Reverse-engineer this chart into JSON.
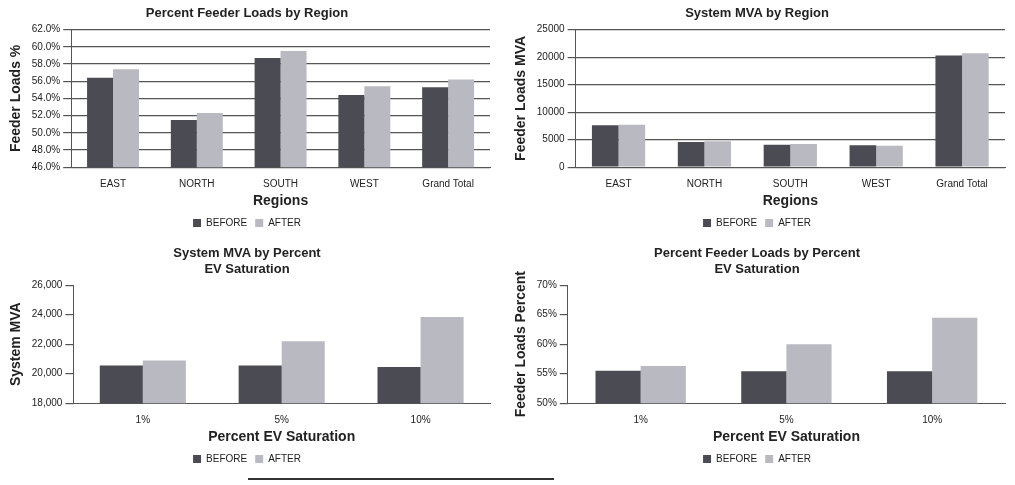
{
  "chart_data": [
    {
      "type": "bar",
      "title": "Percent Feeder Loads by Region",
      "xlabel": "Regions",
      "ylabel": "Feeder Loads %",
      "categories": [
        "EAST",
        "NORTH",
        "SOUTH",
        "WEST",
        "Grand Total"
      ],
      "series": [
        {
          "name": "BEFORE",
          "color": "#4b4b53",
          "values": [
            56.4,
            51.5,
            58.7,
            54.4,
            55.3
          ]
        },
        {
          "name": "AFTER",
          "color": "#b9b9c1",
          "values": [
            57.4,
            52.3,
            59.5,
            55.4,
            56.2
          ]
        }
      ],
      "ylim": [
        46,
        62
      ],
      "yticks": [
        {
          "value": 46,
          "label": "46.0%"
        },
        {
          "value": 48,
          "label": "48.0%"
        },
        {
          "value": 50,
          "label": "50.0%"
        },
        {
          "value": 52,
          "label": "52.0%"
        },
        {
          "value": 54,
          "label": "54.0%"
        },
        {
          "value": 56,
          "label": "56.0%"
        },
        {
          "value": 58,
          "label": "58.0%"
        },
        {
          "value": 60,
          "label": "60.0%"
        },
        {
          "value": 62,
          "label": "62.0%"
        }
      ],
      "grid": "y",
      "legend": "bottom"
    },
    {
      "type": "bar",
      "title": "System MVA by Region",
      "xlabel": "Regions",
      "ylabel": "Feeder Loads MVA",
      "categories": [
        "EAST",
        "NORTH",
        "SOUTH",
        "WEST",
        "Grand Total"
      ],
      "series": [
        {
          "name": "BEFORE",
          "color": "#4b4b53",
          "values": [
            7600,
            4600,
            4100,
            4000,
            20300
          ]
        },
        {
          "name": "AFTER",
          "color": "#b9b9c1",
          "values": [
            7700,
            4700,
            4200,
            3900,
            20700
          ]
        }
      ],
      "ylim": [
        0,
        25000
      ],
      "yticks": [
        0,
        5000,
        10000,
        15000,
        20000,
        25000
      ],
      "grid": "y",
      "legend": "bottom"
    },
    {
      "type": "bar",
      "title": "System MVA by Percent EV Saturation",
      "xlabel": "Percent EV Saturation",
      "ylabel": "System MVA",
      "categories": [
        "1%",
        "5%",
        "10%"
      ],
      "series": [
        {
          "name": "BEFORE",
          "color": "#4b4b53",
          "values": [
            20550,
            20550,
            20450
          ]
        },
        {
          "name": "AFTER",
          "color": "#b9b9c1",
          "values": [
            20900,
            22200,
            23850
          ]
        }
      ],
      "ylim": [
        18000,
        26000
      ],
      "yticks": [
        {
          "value": 18000,
          "label": "18,000"
        },
        {
          "value": 20000,
          "label": "20,000"
        },
        {
          "value": 22000,
          "label": "22,000"
        },
        {
          "value": 24000,
          "label": "24,000"
        },
        {
          "value": 26000,
          "label": "26,000"
        }
      ],
      "legend": "bottom"
    },
    {
      "type": "bar",
      "title": "Percent Feeder Loads by Percent EV Saturation",
      "xlabel": "Percent EV Saturation",
      "ylabel": "Feeder Loads Percent",
      "categories": [
        "1%",
        "5%",
        "10%"
      ],
      "series": [
        {
          "name": "BEFORE",
          "color": "#4b4b53",
          "values": [
            55.5,
            55.4,
            55.4
          ]
        },
        {
          "name": "AFTER",
          "color": "#b9b9c1",
          "values": [
            56.3,
            60.0,
            64.5
          ]
        }
      ],
      "ylim": [
        50,
        70
      ],
      "yticks": [
        {
          "value": 50,
          "label": "50%"
        },
        {
          "value": 55,
          "label": "55%"
        },
        {
          "value": 60,
          "label": "60%"
        },
        {
          "value": 65,
          "label": "65%"
        },
        {
          "value": 70,
          "label": "70%"
        }
      ],
      "legend": "bottom"
    }
  ]
}
